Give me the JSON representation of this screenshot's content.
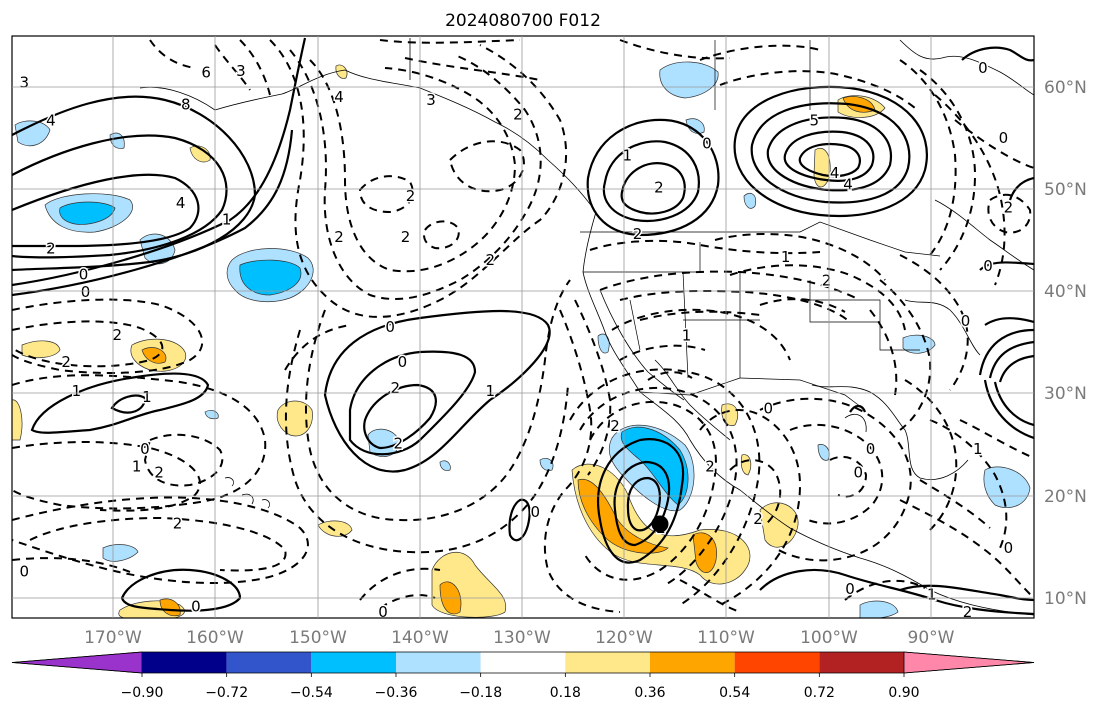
{
  "title": "2024080700 F012",
  "lon_labels": [
    "170°W",
    "160°W",
    "150°W",
    "140°W",
    "130°W",
    "120°W",
    "110°W",
    "100°W",
    "90°W"
  ],
  "lat_labels": [
    "60°N",
    "50°N",
    "40°N",
    "30°N",
    "20°N",
    "10°N"
  ],
  "colorbar": {
    "tick_labels": [
      "−0.90",
      "−0.72",
      "−0.54",
      "−0.36",
      "−0.18",
      "0.18",
      "0.36",
      "0.54",
      "0.72",
      "0.90"
    ],
    "colors": [
      "#9933cc",
      "#00008b",
      "#3355cc",
      "#00bfff",
      "#aee0ff",
      "#ffffff",
      "#ffe88a",
      "#ffa500",
      "#ff4500",
      "#b22222",
      "#ff88aa"
    ]
  },
  "contour_labels": [
    {
      "text": "3",
      "lx": 0.012,
      "ly": 0.08
    },
    {
      "text": "4",
      "lx": 0.038,
      "ly": 0.145
    },
    {
      "text": "6",
      "lx": 0.19,
      "ly": 0.063
    },
    {
      "text": "8",
      "lx": 0.17,
      "ly": 0.118
    },
    {
      "text": "3",
      "lx": 0.224,
      "ly": 0.06
    },
    {
      "text": "4",
      "lx": 0.165,
      "ly": 0.287
    },
    {
      "text": "1",
      "lx": 0.21,
      "ly": 0.315
    },
    {
      "text": "2",
      "lx": 0.038,
      "ly": 0.365
    },
    {
      "text": "0",
      "lx": 0.07,
      "ly": 0.41
    },
    {
      "text": "0",
      "lx": 0.072,
      "ly": 0.44
    },
    {
      "text": "2",
      "lx": 0.103,
      "ly": 0.514
    },
    {
      "text": "2",
      "lx": 0.053,
      "ly": 0.56
    },
    {
      "text": "1",
      "lx": 0.063,
      "ly": 0.61
    },
    {
      "text": "1",
      "lx": 0.132,
      "ly": 0.62
    },
    {
      "text": "0",
      "lx": 0.13,
      "ly": 0.71
    },
    {
      "text": "1",
      "lx": 0.122,
      "ly": 0.74
    },
    {
      "text": "2",
      "lx": 0.144,
      "ly": 0.75
    },
    {
      "text": "2",
      "lx": 0.162,
      "ly": 0.838
    },
    {
      "text": "0",
      "lx": 0.012,
      "ly": 0.92
    },
    {
      "text": "0",
      "lx": 0.18,
      "ly": 0.98
    },
    {
      "text": "4",
      "lx": 0.32,
      "ly": 0.105
    },
    {
      "text": "3",
      "lx": 0.41,
      "ly": 0.11
    },
    {
      "text": "2",
      "lx": 0.495,
      "ly": 0.135
    },
    {
      "text": "2",
      "lx": 0.39,
      "ly": 0.275
    },
    {
      "text": "2",
      "lx": 0.32,
      "ly": 0.345
    },
    {
      "text": "2",
      "lx": 0.385,
      "ly": 0.345
    },
    {
      "text": "2",
      "lx": 0.468,
      "ly": 0.385
    },
    {
      "text": "0",
      "lx": 0.37,
      "ly": 0.5
    },
    {
      "text": "0",
      "lx": 0.382,
      "ly": 0.56
    },
    {
      "text": "2",
      "lx": 0.375,
      "ly": 0.605
    },
    {
      "text": "2",
      "lx": 0.378,
      "ly": 0.7
    },
    {
      "text": "1",
      "lx": 0.468,
      "ly": 0.61
    },
    {
      "text": "0",
      "lx": 0.512,
      "ly": 0.818
    },
    {
      "text": "0",
      "lx": 0.363,
      "ly": 0.99
    },
    {
      "text": "1",
      "lx": 0.602,
      "ly": 0.205
    },
    {
      "text": "2",
      "lx": 0.633,
      "ly": 0.26
    },
    {
      "text": "2",
      "lx": 0.612,
      "ly": 0.34
    },
    {
      "text": "0",
      "lx": 0.68,
      "ly": 0.185
    },
    {
      "text": "5",
      "lx": 0.785,
      "ly": 0.145
    },
    {
      "text": "4",
      "lx": 0.805,
      "ly": 0.235
    },
    {
      "text": "4",
      "lx": 0.818,
      "ly": 0.255
    },
    {
      "text": "1",
      "lx": 0.757,
      "ly": 0.38
    },
    {
      "text": "2",
      "lx": 0.797,
      "ly": 0.42
    },
    {
      "text": "0",
      "lx": 0.95,
      "ly": 0.055
    },
    {
      "text": "0",
      "lx": 0.97,
      "ly": 0.175
    },
    {
      "text": "2",
      "lx": 0.975,
      "ly": 0.295
    },
    {
      "text": "0",
      "lx": 0.955,
      "ly": 0.395
    },
    {
      "text": "0",
      "lx": 0.933,
      "ly": 0.49
    },
    {
      "text": "1",
      "lx": 0.66,
      "ly": 0.515
    },
    {
      "text": "2",
      "lx": 0.59,
      "ly": 0.67
    },
    {
      "text": "0",
      "lx": 0.74,
      "ly": 0.64
    },
    {
      "text": "2",
      "lx": 0.683,
      "ly": 0.74
    },
    {
      "text": "2",
      "lx": 0.73,
      "ly": 0.83
    },
    {
      "text": "2",
      "lx": 0.635,
      "ly": 0.845
    },
    {
      "text": "0",
      "lx": 0.84,
      "ly": 0.71
    },
    {
      "text": "0",
      "lx": 0.828,
      "ly": 0.75
    },
    {
      "text": "1",
      "lx": 0.945,
      "ly": 0.71
    },
    {
      "text": "0",
      "lx": 0.975,
      "ly": 0.88
    },
    {
      "text": "0",
      "lx": 0.82,
      "ly": 0.95
    },
    {
      "text": "1",
      "lx": 0.9,
      "ly": 0.96
    },
    {
      "text": "2",
      "lx": 0.935,
      "ly": 0.99
    }
  ]
}
